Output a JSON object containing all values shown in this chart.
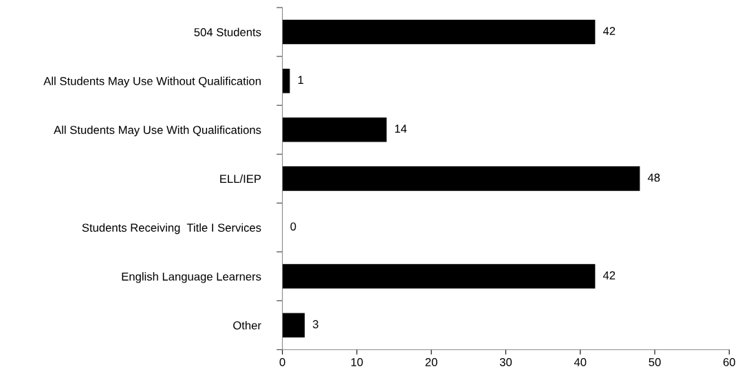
{
  "chart_data": {
    "type": "bar",
    "orientation": "horizontal",
    "categories": [
      "504 Students",
      "All Students May Use Without Qualification",
      "All Students May Use With Qualifications",
      "ELL/IEP",
      "Students Receiving  Title I Services",
      "English Language Learners",
      "Other"
    ],
    "values": [
      42,
      1,
      14,
      48,
      0,
      42,
      3
    ],
    "color": "#000000",
    "xlim": [
      0,
      60
    ],
    "xticks": [
      0,
      10,
      20,
      30,
      40,
      50,
      60
    ],
    "grid": false,
    "data_labels": true
  }
}
